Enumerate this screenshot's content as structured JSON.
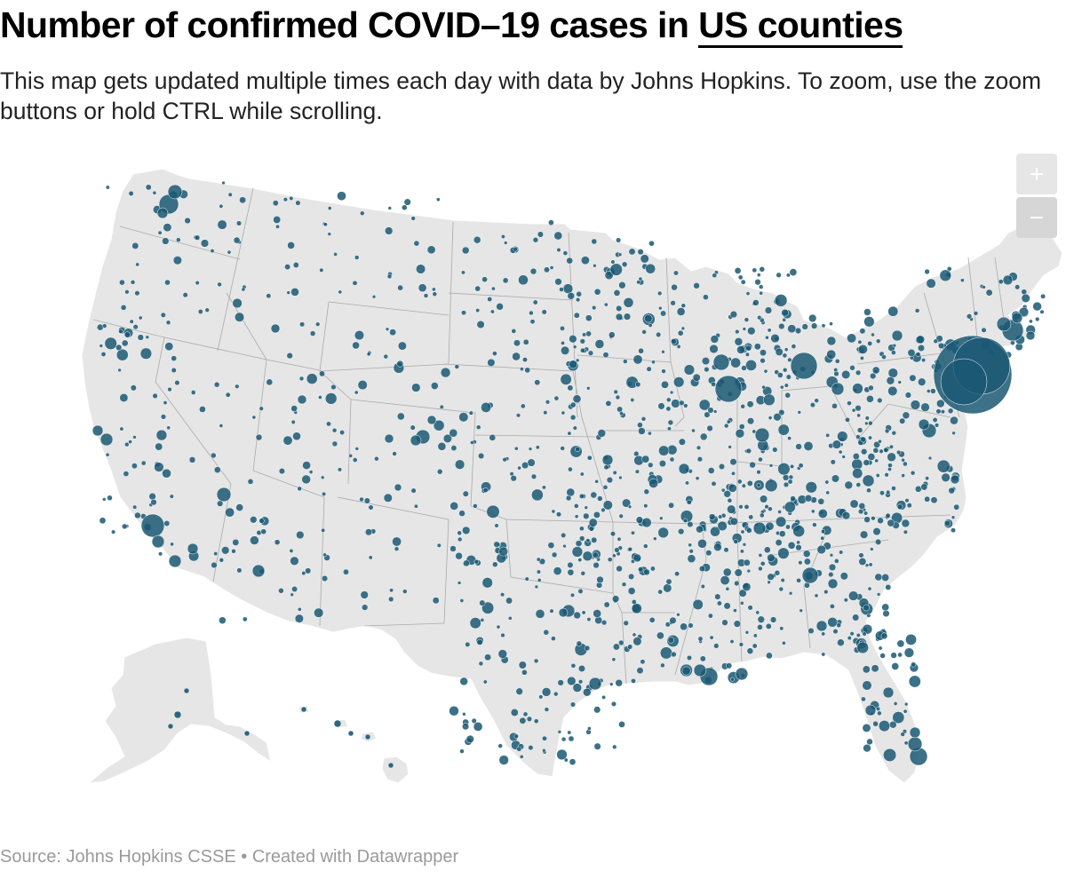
{
  "header": {
    "title_prefix": "Number of confirmed COVID–19 cases in ",
    "title_link": "US counties",
    "subtitle": "This map gets updated multiple times each day with data by Johns Hopkins. To zoom, use the zoom buttons or hold CTRL while scrolling."
  },
  "map": {
    "type": "proportional-symbol-map",
    "region": "United States counties",
    "land_color": "#e6e6e6",
    "border_color": "#aaaaaa",
    "symbol_color": "#1a5873"
  },
  "controls": {
    "zoom_in_label": "+",
    "zoom_out_label": "−"
  },
  "footer": {
    "source": "Source: Johns Hopkins CSSE",
    "separator": " • ",
    "credit": "Created with Datawrapper"
  }
}
